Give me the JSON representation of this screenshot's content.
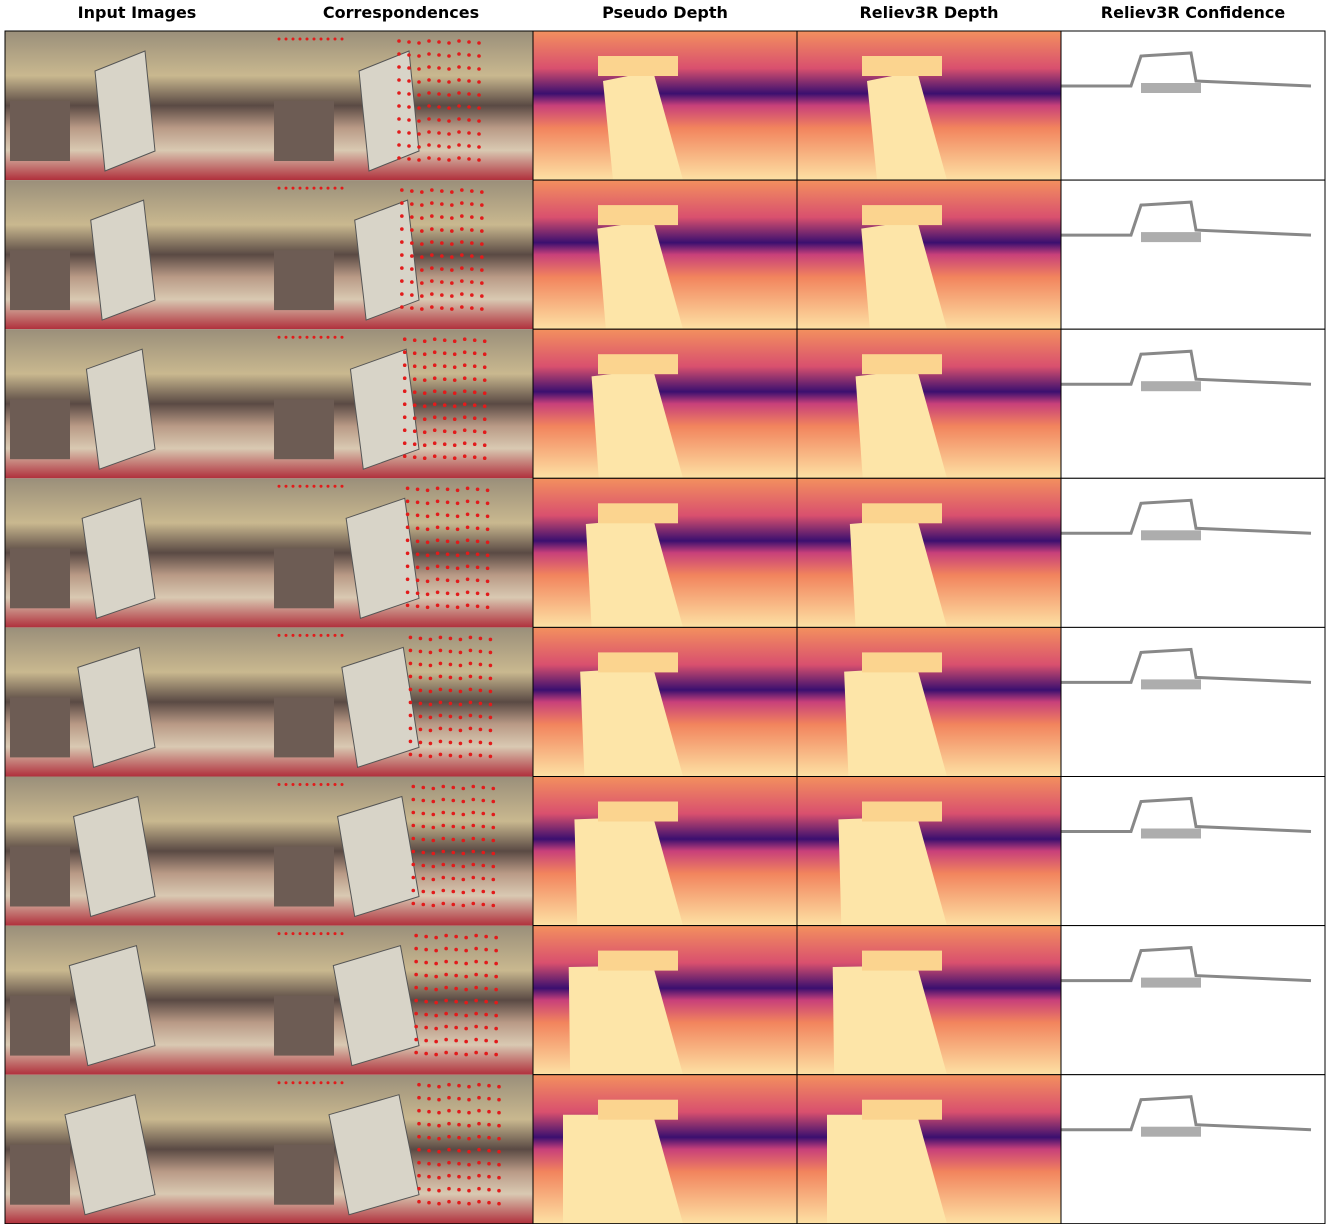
{
  "columns": [
    "Input Images",
    "Correspondences",
    "Pseudo Depth",
    "Reliev3R Depth",
    "Reliev3R Confidence"
  ]
}
